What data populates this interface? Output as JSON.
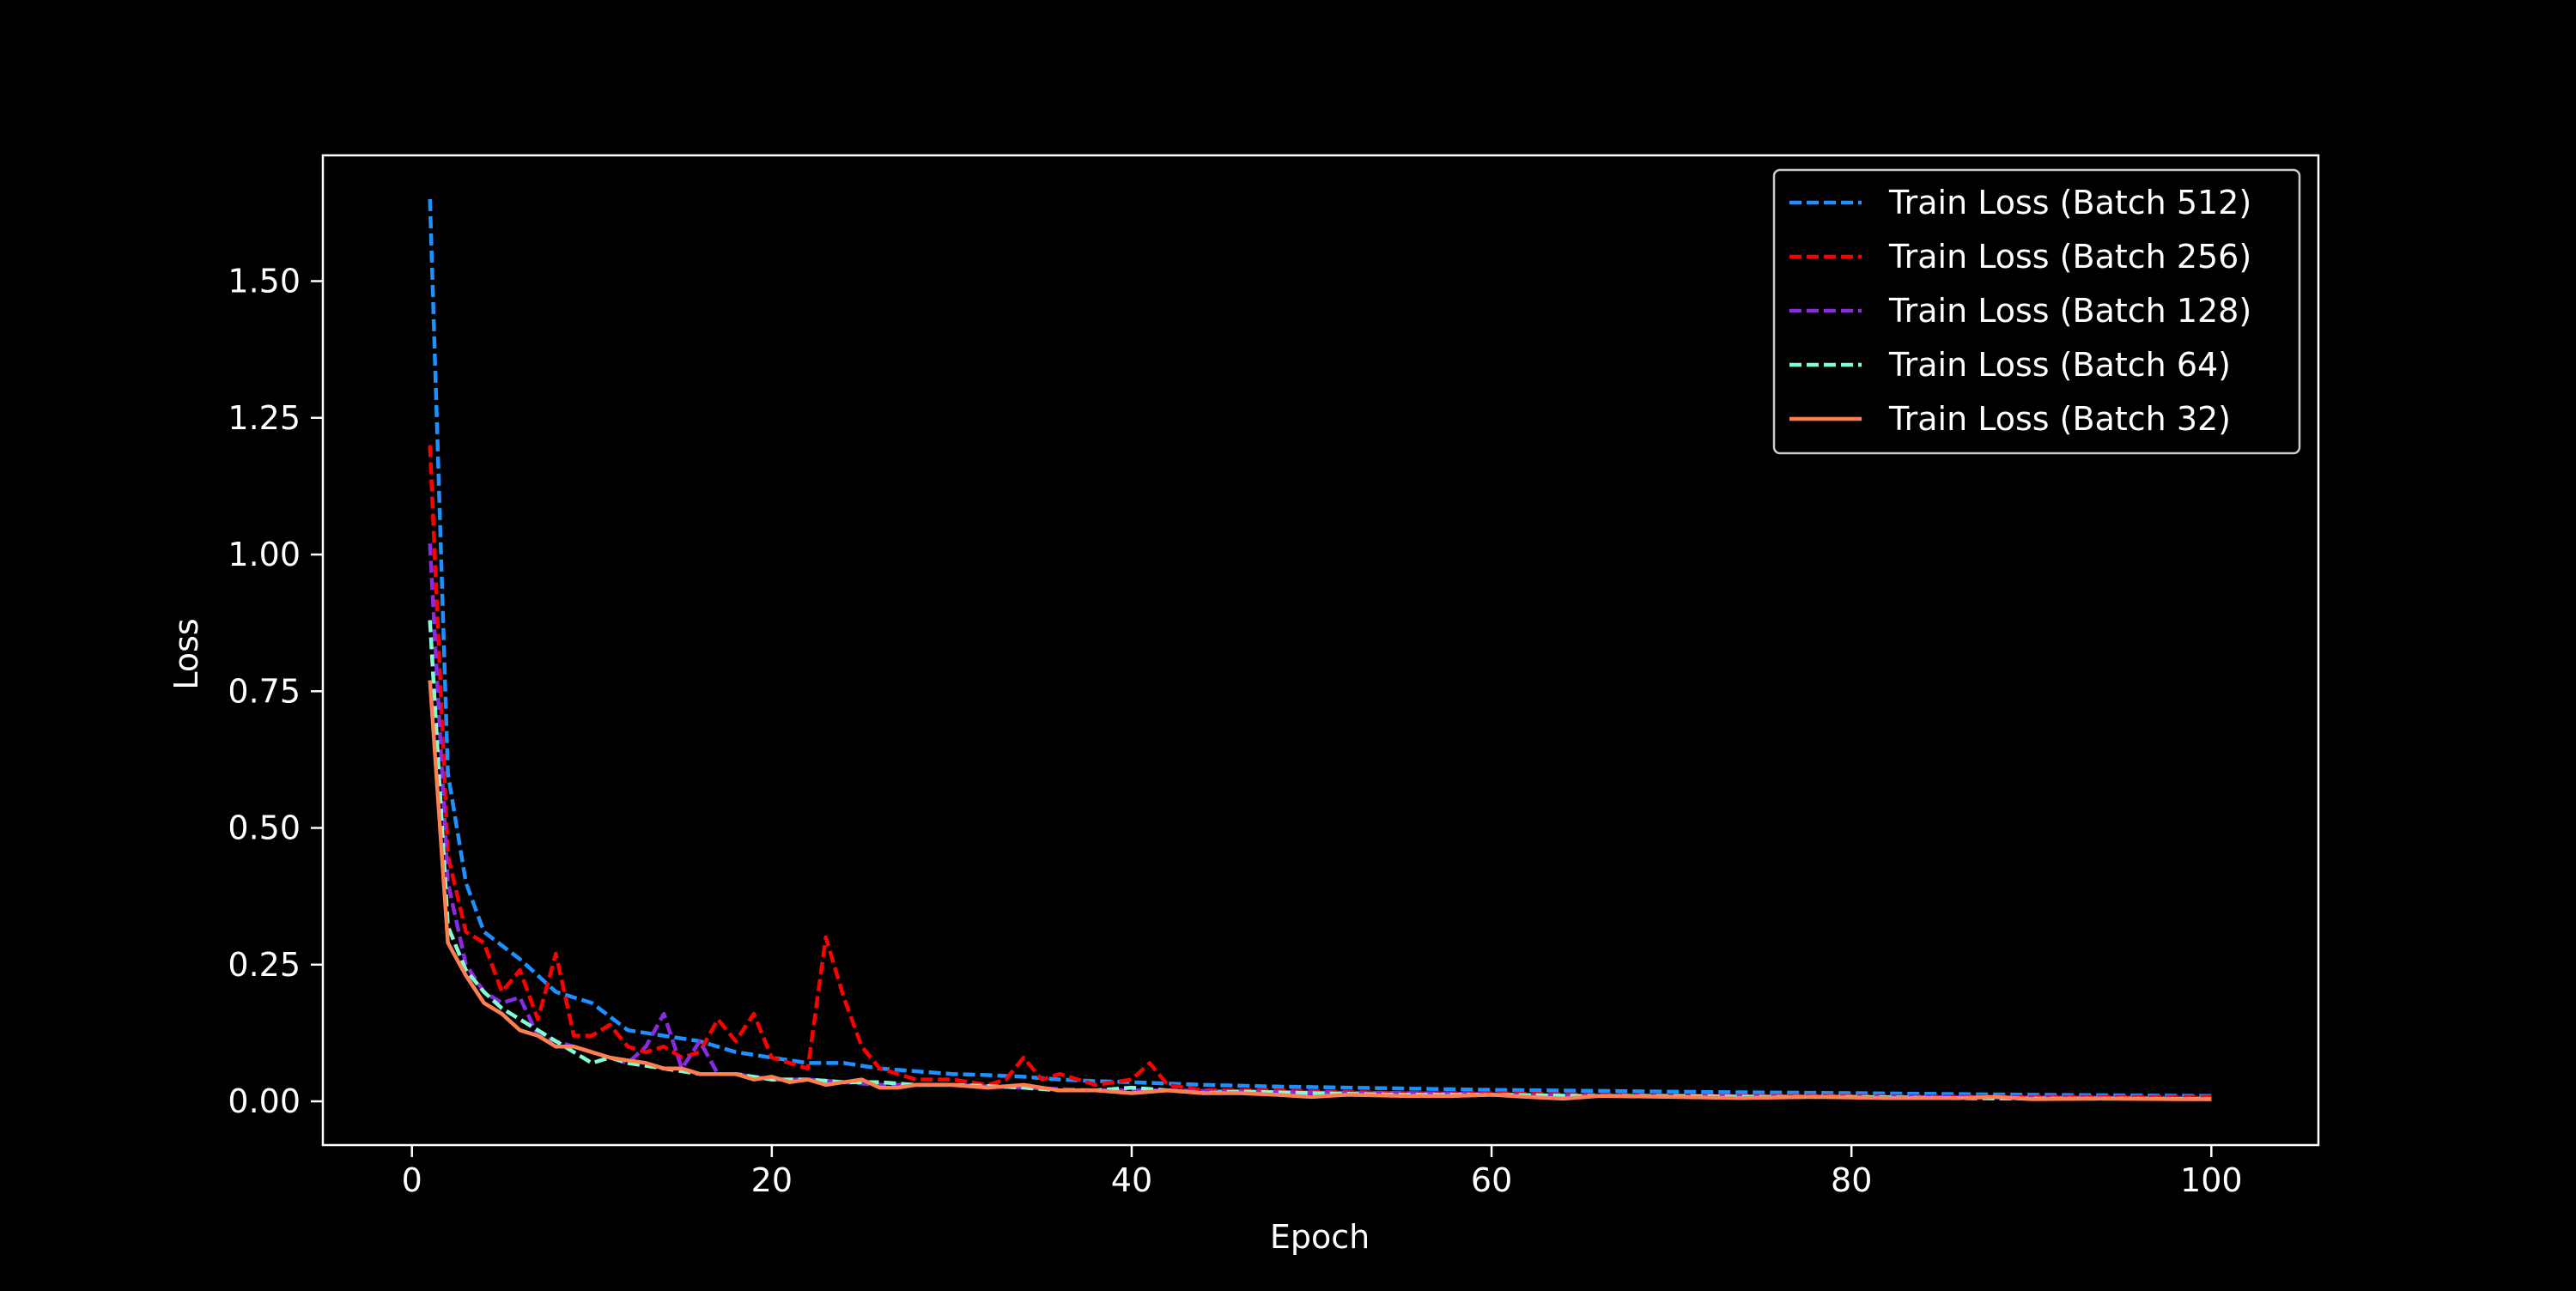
{
  "chart_data": {
    "type": "line",
    "title": "",
    "xlabel": "Epoch",
    "ylabel": "Loss",
    "xlim": [
      -4.95,
      105.95
    ],
    "ylim": [
      -0.08,
      1.73
    ],
    "xticks": [
      0,
      20,
      40,
      60,
      80,
      100
    ],
    "xtick_labels": [
      "0",
      "20",
      "40",
      "60",
      "80",
      "100"
    ],
    "yticks": [
      0.0,
      0.25,
      0.5,
      0.75,
      1.0,
      1.25,
      1.5
    ],
    "ytick_labels": [
      "0.00",
      "0.25",
      "0.50",
      "0.75",
      "1.00",
      "1.25",
      "1.50"
    ],
    "grid": false,
    "legend_position": "top-right",
    "background": "#000000",
    "foreground": "#ffffff",
    "series": [
      {
        "name": "Train Loss (Batch 512)",
        "color": "#1e90ff",
        "dash": "dashed",
        "x": [
          1,
          2,
          3,
          4,
          6,
          8,
          10,
          12,
          14,
          16,
          18,
          20,
          22,
          24,
          26,
          28,
          30,
          32,
          34,
          36,
          38,
          40,
          44,
          48,
          52,
          56,
          60,
          66,
          72,
          80,
          90,
          100
        ],
        "y": [
          1.65,
          0.6,
          0.4,
          0.31,
          0.26,
          0.2,
          0.18,
          0.13,
          0.12,
          0.11,
          0.09,
          0.08,
          0.07,
          0.07,
          0.06,
          0.055,
          0.05,
          0.048,
          0.045,
          0.04,
          0.037,
          0.035,
          0.03,
          0.027,
          0.025,
          0.023,
          0.021,
          0.019,
          0.017,
          0.015,
          0.012,
          0.01
        ]
      },
      {
        "name": "Train Loss (Batch 256)",
        "color": "#ff0000",
        "dash": "dashed",
        "x": [
          1,
          2,
          3,
          4,
          5,
          6,
          7,
          8,
          9,
          10,
          11,
          12,
          13,
          14,
          15,
          16,
          17,
          18,
          19,
          20,
          21,
          22,
          23,
          24,
          25,
          26,
          27,
          28,
          30,
          32,
          33,
          34,
          35,
          36,
          38,
          40,
          41,
          42,
          44,
          48,
          55,
          60,
          70,
          80,
          90,
          100
        ],
        "y": [
          1.2,
          0.45,
          0.31,
          0.29,
          0.2,
          0.24,
          0.15,
          0.27,
          0.12,
          0.12,
          0.14,
          0.1,
          0.09,
          0.1,
          0.08,
          0.09,
          0.15,
          0.11,
          0.16,
          0.08,
          0.07,
          0.06,
          0.3,
          0.19,
          0.1,
          0.06,
          0.05,
          0.04,
          0.04,
          0.03,
          0.04,
          0.08,
          0.04,
          0.05,
          0.03,
          0.04,
          0.07,
          0.03,
          0.02,
          0.02,
          0.015,
          0.015,
          0.01,
          0.01,
          0.008,
          0.008
        ]
      },
      {
        "name": "Train Loss (Batch 128)",
        "color": "#8a2be2",
        "dash": "dashed",
        "x": [
          1,
          2,
          3,
          4,
          5,
          6,
          7,
          8,
          9,
          10,
          11,
          12,
          13,
          14,
          15,
          16,
          17,
          18,
          20,
          22,
          24,
          26,
          28,
          30,
          34,
          38,
          42,
          46,
          50,
          56,
          60,
          64,
          70,
          80,
          90,
          100
        ],
        "y": [
          1.02,
          0.4,
          0.25,
          0.2,
          0.18,
          0.19,
          0.12,
          0.11,
          0.1,
          0.09,
          0.08,
          0.07,
          0.1,
          0.16,
          0.06,
          0.11,
          0.05,
          0.05,
          0.04,
          0.04,
          0.035,
          0.03,
          0.03,
          0.03,
          0.025,
          0.02,
          0.02,
          0.018,
          0.016,
          0.015,
          0.013,
          0.01,
          0.01,
          0.008,
          0.007,
          0.006
        ]
      },
      {
        "name": "Train Loss (Batch 64)",
        "color": "#7fffd4",
        "dash": "dashed",
        "x": [
          1,
          2,
          3,
          4,
          5,
          6,
          7,
          8,
          9,
          10,
          11,
          12,
          14,
          16,
          18,
          20,
          22,
          24,
          26,
          28,
          30,
          32,
          34,
          36,
          38,
          40,
          42,
          44,
          46,
          50,
          55,
          60,
          65,
          70,
          75,
          80,
          85,
          90,
          95,
          100
        ],
        "y": [
          0.88,
          0.32,
          0.24,
          0.2,
          0.17,
          0.15,
          0.13,
          0.11,
          0.09,
          0.07,
          0.08,
          0.07,
          0.06,
          0.05,
          0.05,
          0.04,
          0.04,
          0.035,
          0.035,
          0.03,
          0.03,
          0.028,
          0.025,
          0.02,
          0.02,
          0.025,
          0.02,
          0.015,
          0.018,
          0.015,
          0.012,
          0.012,
          0.01,
          0.01,
          0.008,
          0.008,
          0.006,
          0.005,
          0.005,
          0.004
        ]
      },
      {
        "name": "Train Loss (Batch 32)",
        "color": "#ff7f50",
        "dash": "solid",
        "x": [
          1,
          2,
          3,
          4,
          5,
          6,
          7,
          8,
          9,
          10,
          11,
          12,
          13,
          14,
          15,
          16,
          17,
          18,
          19,
          20,
          21,
          22,
          23,
          24,
          25,
          26,
          27,
          28,
          29,
          30,
          32,
          34,
          36,
          38,
          40,
          42,
          44,
          46,
          48,
          50,
          52,
          55,
          58,
          60,
          62,
          64,
          66,
          70,
          74,
          78,
          82,
          86,
          88,
          90,
          94,
          98,
          100
        ],
        "y": [
          0.77,
          0.29,
          0.23,
          0.18,
          0.16,
          0.13,
          0.12,
          0.1,
          0.1,
          0.09,
          0.08,
          0.075,
          0.07,
          0.06,
          0.06,
          0.05,
          0.05,
          0.05,
          0.04,
          0.045,
          0.035,
          0.04,
          0.03,
          0.035,
          0.04,
          0.025,
          0.025,
          0.03,
          0.03,
          0.03,
          0.025,
          0.03,
          0.02,
          0.02,
          0.015,
          0.02,
          0.015,
          0.015,
          0.012,
          0.008,
          0.012,
          0.01,
          0.01,
          0.012,
          0.008,
          0.005,
          0.01,
          0.008,
          0.006,
          0.008,
          0.006,
          0.006,
          0.008,
          0.004,
          0.005,
          0.004,
          0.004
        ]
      }
    ]
  }
}
